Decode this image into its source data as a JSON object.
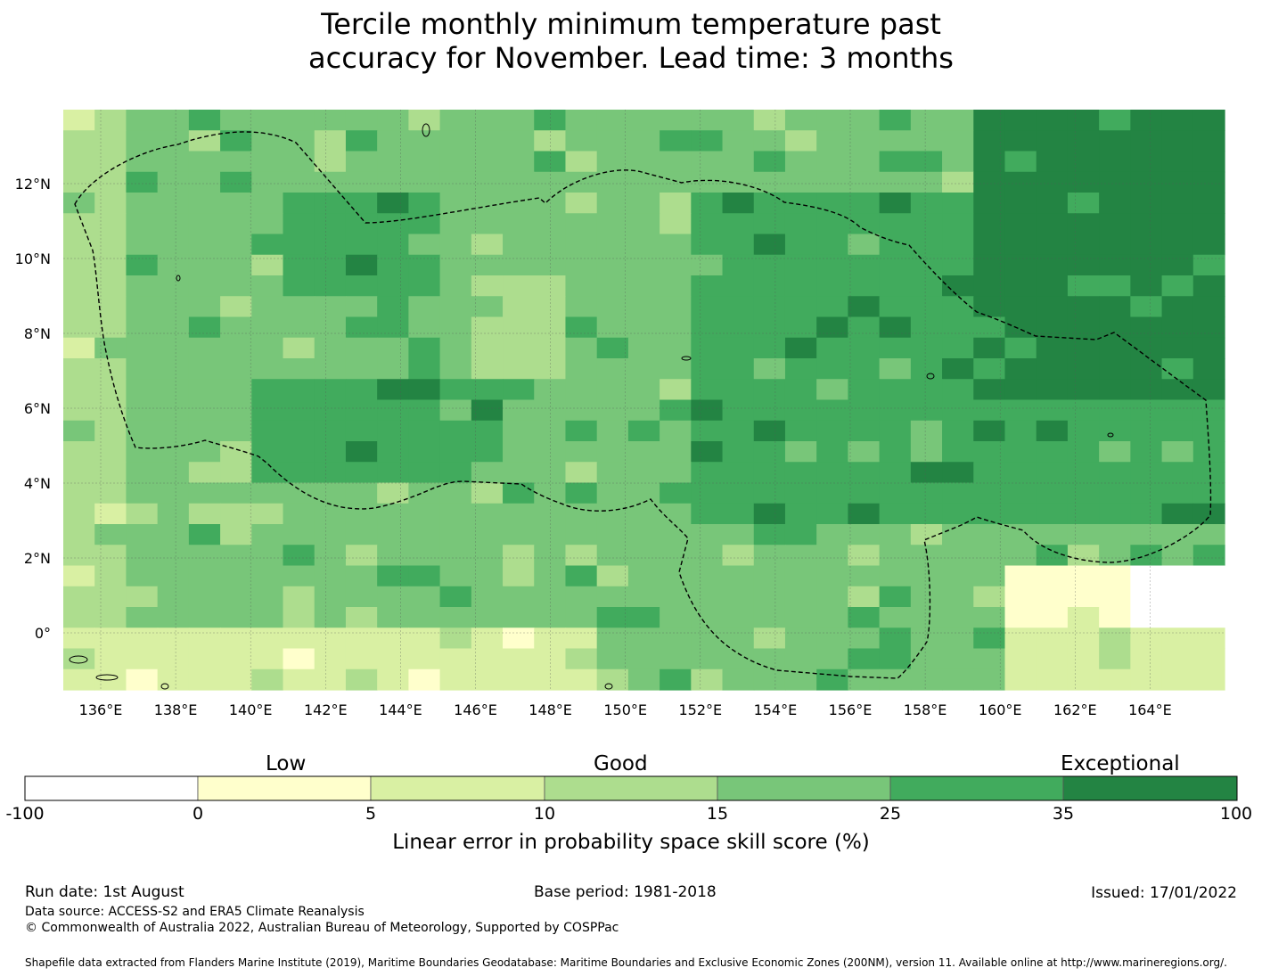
{
  "title_line1": "Tercile monthly minimum temperature past",
  "title_line2": "accuracy for November. Lead time: 3 months",
  "map": {
    "lon_range": [
      135,
      166
    ],
    "lat_range": [
      -1.5,
      14
    ],
    "lon_ticks": [
      "136°E",
      "138°E",
      "140°E",
      "142°E",
      "144°E",
      "146°E",
      "148°E",
      "150°E",
      "152°E",
      "154°E",
      "156°E",
      "158°E",
      "160°E",
      "162°E",
      "164°E"
    ],
    "lat_ticks": [
      "12°N",
      "10°N",
      "8°N",
      "6°N",
      "4°N",
      "2°N",
      "0°"
    ],
    "grid": true,
    "boundary_style": "dashed",
    "cell_values_description": "categorical LEPS skill class per grid cell (0 = -100..0, 1 = 0..5, 2 = 5..10, 3 = 10..15, 4 = 15..25, 5 = 25..35, 6 = 35..100)"
  },
  "legend": {
    "category_labels": [
      "Low",
      "Good",
      "Exceptional"
    ],
    "ticks": [
      "-100",
      "0",
      "5",
      "10",
      "15",
      "25",
      "35",
      "100"
    ],
    "colors": [
      "#ffffff",
      "#ffffcc",
      "#d9f0a3",
      "#addd8e",
      "#78c679",
      "#41ab5d",
      "#238443"
    ],
    "title": "Linear error in probability space skill score (%)"
  },
  "footer": {
    "run_date": "Run date: 1st August",
    "base_period": "Base period: 1981-2018",
    "issued": "Issued: 17/01/2022",
    "data_source": "Data source: ACCESS-S2 and ERA5 Climate Reanalysis",
    "copyright": "© Commonwealth of Australia 2022, Australian Bureau of Meteorology, Supported by COSPPac",
    "shapefile": "Shapefile data extracted from Flanders Marine Institute (2019), Maritime Boundaries Geodatabase: Maritime Boundaries and Exclusive Economic Zones (200NM), version 11. Available online at http://www.marineregions.org/."
  }
}
